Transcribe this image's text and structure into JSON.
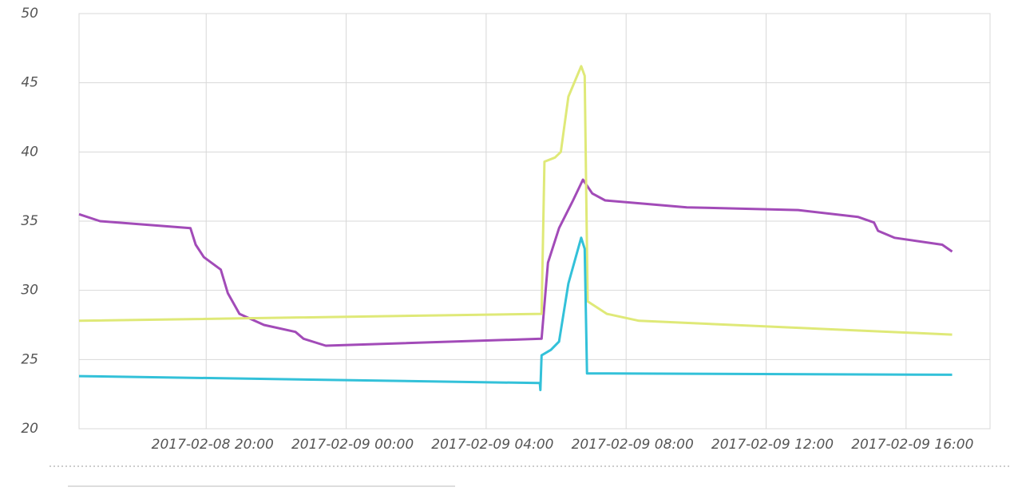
{
  "chart_data": {
    "type": "line",
    "xlim": [
      "2017-02-08 16:22",
      "2017-02-09 18:24"
    ],
    "xticks": [
      "2017-02-08 20:00",
      "2017-02-09 00:00",
      "2017-02-09 04:00",
      "2017-02-09 08:00",
      "2017-02-09 12:00",
      "2017-02-09 16:00"
    ],
    "ylim": [
      20,
      50
    ],
    "yticks": [
      20,
      25,
      30,
      35,
      40,
      45,
      50
    ],
    "grid": true,
    "series": [
      {
        "color": "#a24bb8",
        "x": [
          "2017-02-08 16:22",
          "2017-02-08 16:58",
          "2017-02-08 19:33",
          "2017-02-08 19:42",
          "2017-02-08 19:56",
          "2017-02-08 20:25",
          "2017-02-08 20:37",
          "2017-02-08 20:57",
          "2017-02-08 21:39",
          "2017-02-08 22:33",
          "2017-02-08 22:47",
          "2017-02-08 23:25",
          "2017-02-09 05:35",
          "2017-02-09 05:46",
          "2017-02-09 06:05",
          "2017-02-09 06:29",
          "2017-02-09 06:46",
          "2017-02-09 07:02",
          "2017-02-09 07:24",
          "2017-02-09 09:44",
          "2017-02-09 12:55",
          "2017-02-09 14:38",
          "2017-02-09 15:05",
          "2017-02-09 15:12",
          "2017-02-09 15:40",
          "2017-02-09 17:02",
          "2017-02-09 17:19"
        ],
        "values": [
          35.5,
          35.0,
          34.5,
          33.3,
          32.4,
          31.5,
          29.8,
          28.3,
          27.5,
          27.0,
          26.5,
          26.0,
          26.5,
          32.0,
          34.5,
          36.5,
          38.0,
          37.0,
          36.5,
          36.0,
          35.8,
          35.3,
          34.9,
          34.3,
          33.8,
          33.3,
          32.8
        ]
      },
      {
        "color": "#dfe978",
        "x": [
          "2017-02-08 16:22",
          "2017-02-09 05:35",
          "2017-02-09 05:40",
          "2017-02-09 05:58",
          "2017-02-09 06:08",
          "2017-02-09 06:21",
          "2017-02-09 06:43",
          "2017-02-09 06:49",
          "2017-02-09 06:54",
          "2017-02-09 07:27",
          "2017-02-09 08:22",
          "2017-02-09 17:19"
        ],
        "values": [
          27.8,
          28.3,
          39.3,
          39.6,
          40.0,
          44.0,
          46.2,
          45.5,
          29.2,
          28.3,
          27.8,
          26.8
        ]
      },
      {
        "color": "#33c1d9",
        "x": [
          "2017-02-08 16:22",
          "2017-02-09 05:32",
          "2017-02-09 05:33",
          "2017-02-09 05:35",
          "2017-02-09 05:51",
          "2017-02-09 06:05",
          "2017-02-09 06:21",
          "2017-02-09 06:43",
          "2017-02-09 06:49",
          "2017-02-09 06:53",
          "2017-02-09 17:19"
        ],
        "values": [
          23.8,
          23.3,
          22.8,
          25.3,
          25.7,
          26.3,
          30.5,
          33.8,
          33.0,
          24.0,
          23.9
        ]
      }
    ]
  }
}
